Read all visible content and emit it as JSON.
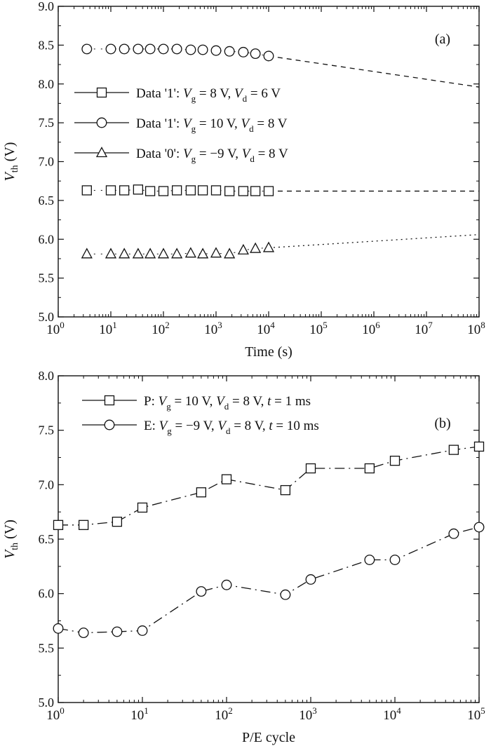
{
  "chart_data": [
    {
      "type": "scatter",
      "panel_label": "(a)",
      "xlabel": "Time (s)",
      "ylabel": "V_th (V)",
      "ylabel_main": "V",
      "ylabel_sub": "th",
      "ylabel_unit": "(V)",
      "xscale": "log",
      "xlim_exp": [
        0,
        8
      ],
      "xtick_exps": [
        "0",
        "1",
        "2",
        "3",
        "4",
        "5",
        "6",
        "7",
        "8"
      ],
      "ylim": [
        5.0,
        9.0
      ],
      "yticks": [
        "5.0",
        "5.5",
        "6.0",
        "6.5",
        "7.0",
        "7.5",
        "8.0",
        "8.5",
        "9.0"
      ],
      "legend_position": "center-left",
      "legend": [
        {
          "marker": "square",
          "pre": "Data '1': ",
          "v1": "V",
          "s1": "g",
          "m1": " = 8 V, ",
          "v2": "V",
          "s2": "d",
          "m2": " = 6 V"
        },
        {
          "marker": "circle",
          "pre": "Data '1': ",
          "v1": "V",
          "s1": "g",
          "m1": " = 10 V, ",
          "v2": "V",
          "s2": "d",
          "m2": " = 8 V"
        },
        {
          "marker": "triangle",
          "pre": "Data '0': ",
          "v1": "V",
          "s1": "g",
          "m1": " = −9 V, ",
          "v2": "V",
          "s2": "d",
          "m2": " = 8 V"
        }
      ],
      "series": [
        {
          "name": "Data '1': Vg = 8 V, Vd = 6 V",
          "marker": "square",
          "x": [
            3.5,
            10,
            18,
            33,
            56,
            100,
            180,
            330,
            560,
            1000,
            1800,
            3300,
            5600,
            10000
          ],
          "y": [
            6.63,
            6.63,
            6.63,
            6.64,
            6.62,
            6.62,
            6.63,
            6.63,
            6.63,
            6.63,
            6.62,
            6.62,
            6.62,
            6.62
          ],
          "extrapolation": {
            "style": "dashed",
            "x": [
              10000,
              100000000
            ],
            "y": [
              6.62,
              6.62
            ]
          }
        },
        {
          "name": "Data '1': Vg = 10 V, Vd = 8 V",
          "marker": "circle",
          "x": [
            3.5,
            10,
            18,
            33,
            56,
            100,
            180,
            330,
            560,
            1000,
            1800,
            3300,
            5600,
            10000
          ],
          "y": [
            8.45,
            8.45,
            8.45,
            8.45,
            8.45,
            8.45,
            8.45,
            8.44,
            8.44,
            8.43,
            8.42,
            8.41,
            8.39,
            8.36
          ],
          "extrapolation": {
            "style": "dashed",
            "x": [
              10000,
              100000000
            ],
            "y": [
              8.36,
              7.96
            ]
          }
        },
        {
          "name": "Data '0': Vg = −9 V, Vd = 8 V",
          "marker": "triangle",
          "x": [
            3.5,
            10,
            18,
            33,
            56,
            100,
            180,
            330,
            560,
            1000,
            1800,
            3300,
            5600,
            10000
          ],
          "y": [
            5.81,
            5.81,
            5.81,
            5.81,
            5.81,
            5.81,
            5.81,
            5.82,
            5.81,
            5.82,
            5.81,
            5.86,
            5.88,
            5.89
          ],
          "extrapolation": {
            "style": "dotted",
            "x": [
              10000,
              100000000
            ],
            "y": [
              5.89,
              6.06
            ]
          }
        }
      ]
    },
    {
      "type": "line",
      "panel_label": "(b)",
      "xlabel": "P/E cycle",
      "ylabel": "V_th (V)",
      "ylabel_main": "V",
      "ylabel_sub": "th",
      "ylabel_unit": "(V)",
      "xscale": "log",
      "xlim_exp": [
        0,
        5
      ],
      "xtick_exps": [
        "0",
        "1",
        "2",
        "3",
        "4",
        "5"
      ],
      "ylim": [
        5.0,
        8.0
      ],
      "yticks": [
        "5.0",
        "5.5",
        "6.0",
        "6.5",
        "7.0",
        "7.5",
        "8.0"
      ],
      "legend_position": "top-left",
      "legend": [
        {
          "marker": "square",
          "pre": "P: ",
          "v1": "V",
          "s1": "g",
          "m1": " = 10 V, ",
          "v2": "V",
          "s2": "d",
          "m2": " = 8 V, ",
          "v3": "t",
          "m3": " = 1 ms"
        },
        {
          "marker": "circle",
          "pre": "E: ",
          "v1": "V",
          "s1": "g",
          "m1": " = −9 V, ",
          "v2": "V",
          "s2": "d",
          "m2": " = 8 V, ",
          "v3": "t",
          "m3": " = 10 ms"
        }
      ],
      "series": [
        {
          "name": "P: Vg = 10 V, Vd = 8 V, t = 1 ms",
          "marker": "square",
          "x": [
            1,
            2,
            5,
            10,
            50,
            100,
            500,
            1000,
            5000,
            10000,
            50000,
            100000
          ],
          "y": [
            6.63,
            6.63,
            6.66,
            6.79,
            6.93,
            7.05,
            6.95,
            7.15,
            7.15,
            7.22,
            7.32,
            7.35
          ]
        },
        {
          "name": "E: Vg = −9 V, Vd = 8 V, t = 10 ms",
          "marker": "circle",
          "x": [
            1,
            2,
            5,
            10,
            50,
            100,
            500,
            1000,
            5000,
            10000,
            50000,
            100000
          ],
          "y": [
            5.68,
            5.64,
            5.65,
            5.66,
            6.02,
            6.08,
            5.99,
            6.13,
            6.31,
            6.31,
            6.55,
            6.61
          ]
        }
      ]
    }
  ]
}
